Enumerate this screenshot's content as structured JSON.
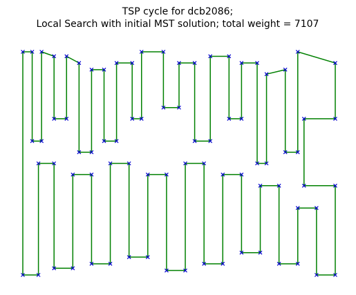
{
  "chart_data": {
    "type": "line",
    "title": [
      "TSP cycle for dcb2086;",
      "Local Search with initial MST solution; total weight = 7107"
    ],
    "x": [
      0,
      0,
      3,
      3,
      6,
      6,
      10,
      10,
      14,
      14,
      18,
      18,
      22,
      22,
      26,
      26,
      30,
      30,
      35,
      35,
      38,
      38,
      45,
      45,
      50,
      50,
      55,
      55,
      60,
      60,
      66,
      66,
      70,
      70,
      75,
      75,
      78,
      78,
      84,
      84,
      88,
      88,
      100,
      100,
      90,
      90,
      100,
      100,
      94,
      94,
      88,
      88,
      82,
      82,
      76,
      76,
      70,
      70,
      64,
      64,
      58,
      58,
      52,
      52,
      46,
      46,
      40,
      40,
      34,
      34,
      28,
      28,
      22,
      22,
      16,
      16,
      10,
      10,
      5,
      5
    ],
    "y": [
      0,
      100,
      100,
      60,
      60,
      100,
      98,
      70,
      70,
      98,
      95,
      55,
      55,
      92,
      92,
      60,
      60,
      95,
      95,
      70,
      70,
      100,
      100,
      75,
      75,
      95,
      95,
      60,
      60,
      98,
      98,
      70,
      70,
      95,
      95,
      50,
      50,
      90,
      92,
      55,
      55,
      100,
      95,
      70,
      70,
      40,
      40,
      0,
      0,
      30,
      30,
      5,
      5,
      40,
      40,
      10,
      10,
      45,
      45,
      5,
      5,
      50,
      50,
      2,
      2,
      45,
      45,
      8,
      8,
      50,
      50,
      5,
      5,
      45,
      45,
      3,
      3,
      50,
      50,
      0
    ],
    "closed": true,
    "line_color": "#008000",
    "marker_color": "#0000cc",
    "marker": "x",
    "xlim": [
      0,
      100
    ],
    "ylim": [
      0,
      100
    ]
  }
}
